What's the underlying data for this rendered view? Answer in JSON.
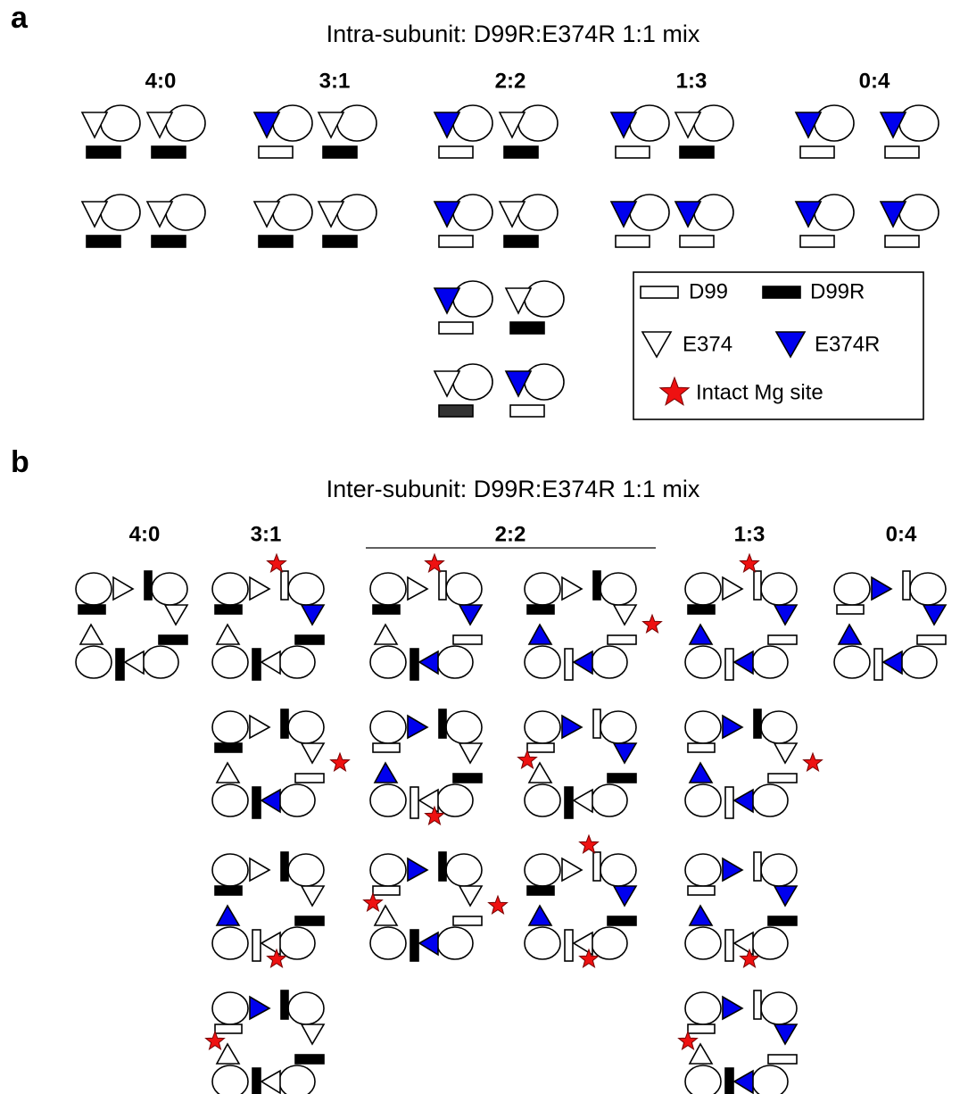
{
  "panel_a": {
    "letter": "a",
    "title": "Intra-subunit: D99R:E374R 1:1 mix",
    "columns": [
      "4:0",
      "3:1",
      "2:2",
      "1:3",
      "0:4"
    ],
    "legend": [
      "D99",
      "D99R",
      "E374",
      "E374R",
      "Intact Mg site"
    ]
  },
  "panel_b": {
    "letter": "b",
    "title": "Inter-subunit: D99R:E374R 1:1 mix",
    "columns": [
      "4:0",
      "3:1",
      "2:2",
      "1:3",
      "0:4"
    ]
  }
}
